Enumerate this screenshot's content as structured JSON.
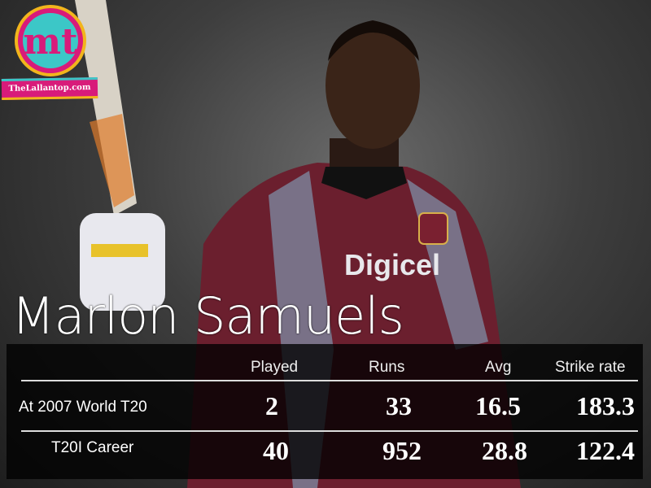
{
  "logo": {
    "monogram": "mt",
    "site": "TheLallantop.com",
    "colors": {
      "pink": "#d81b7a",
      "teal": "#3cc7c7",
      "yellow": "#f2b51c"
    }
  },
  "player_name": "Marlon Samuels",
  "jersey_sponsor": "Digicel",
  "table": {
    "headers": [
      "Played",
      "Runs",
      "Avg",
      "Strike rate"
    ],
    "rows": [
      {
        "label": "At 2007 World T20",
        "values": [
          "2",
          "33",
          "16.5",
          "183.3"
        ]
      },
      {
        "label": "T20I Career",
        "values": [
          "40",
          "952",
          "28.8",
          "122.4"
        ]
      }
    ]
  }
}
